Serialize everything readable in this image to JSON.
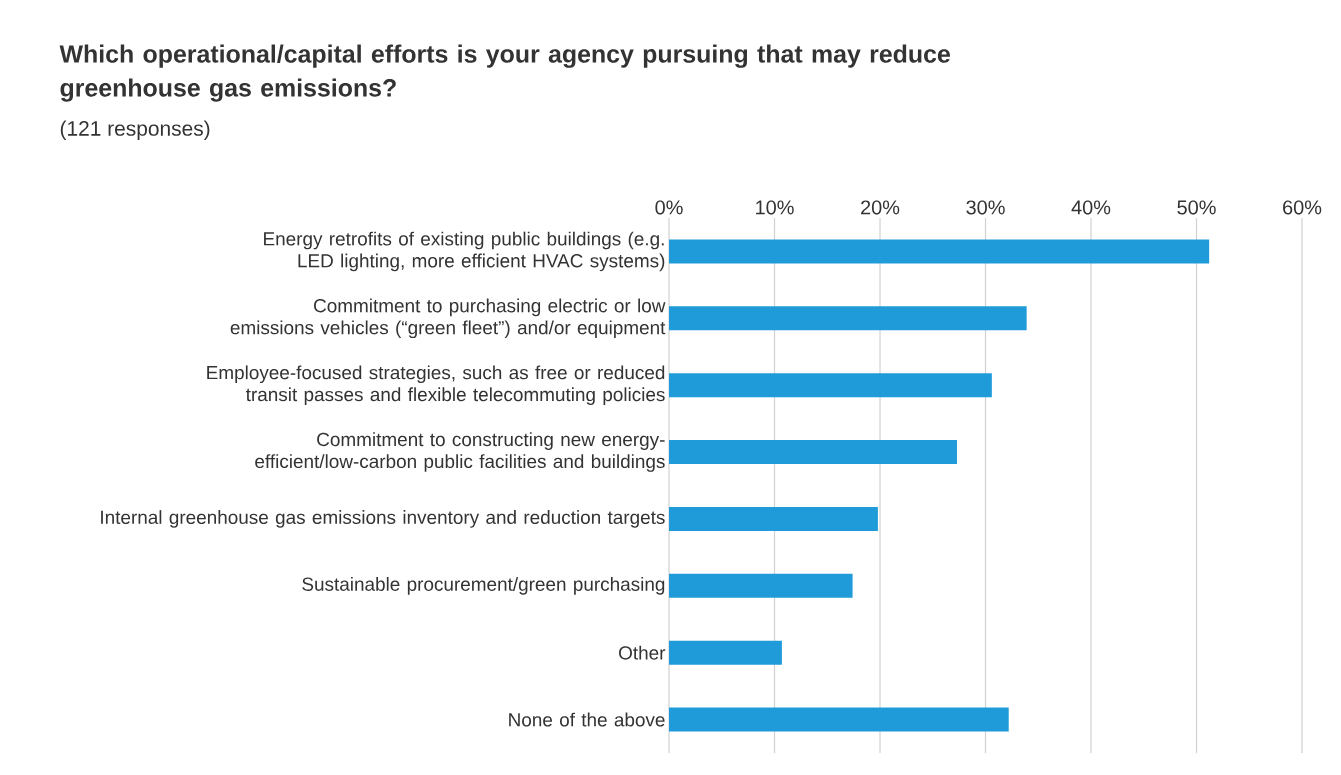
{
  "chart_data": {
    "type": "bar",
    "orientation": "horizontal",
    "title": "Which operational/capital efforts is your agency pursuing that may reduce greenhouse gas emissions?",
    "subtitle": "(121 responses)",
    "categories": [
      "Energy retrofits of existing public buildings (e.g. LED lighting, more efficient HVAC systems)",
      "Commitment to purchasing electric or low emissions vehicles (“green fleet”) and/or equipment",
      "Employee-focused strategies, such as free or reduced transit passes and flexible telecommuting policies",
      "Commitment to constructing new energy-efficient/low-carbon public facilities and buildings",
      "Internal greenhouse gas emissions inventory and reduction targets",
      "Sustainable procurement/green purchasing",
      "Other",
      "None of the above"
    ],
    "values": [
      51.2,
      33.9,
      30.6,
      27.3,
      19.8,
      17.4,
      10.7,
      32.2
    ],
    "color": "#1f9bd9",
    "xlim": [
      0,
      60
    ],
    "xticks": [
      {
        "value": 0,
        "label": "0%"
      },
      {
        "value": 10,
        "label": "10%"
      },
      {
        "value": 20,
        "label": "20%"
      },
      {
        "value": 30,
        "label": "30%"
      },
      {
        "value": 40,
        "label": "40%"
      },
      {
        "value": 50,
        "label": "50%"
      },
      {
        "value": 60,
        "label": "60%"
      }
    ],
    "grid": "x"
  }
}
